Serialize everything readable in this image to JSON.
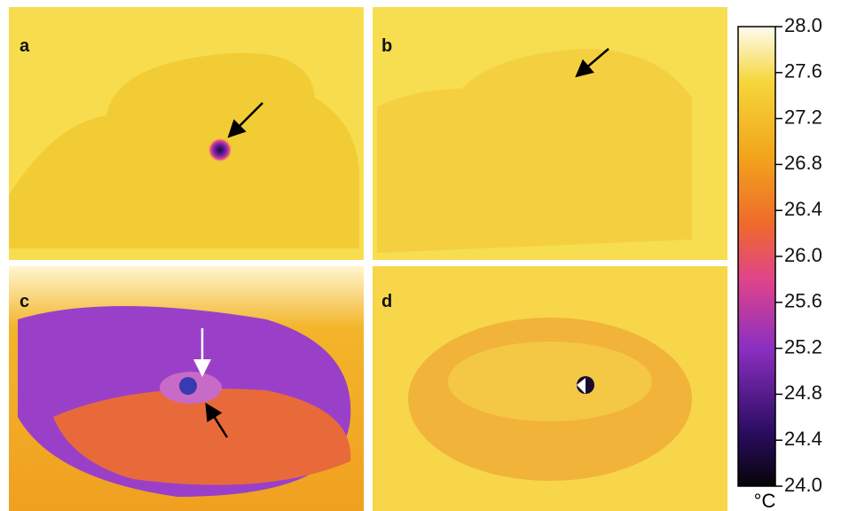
{
  "panels": [
    {
      "label": "a"
    },
    {
      "label": "b"
    },
    {
      "label": "c"
    },
    {
      "label": "d"
    }
  ],
  "colorbar": {
    "lim": [
      24,
      28
    ],
    "ticks": [
      {
        "value": 24,
        "label": "24.0"
      },
      {
        "value": 24.4,
        "label": "24.4"
      },
      {
        "value": 24.8,
        "label": "24.8"
      },
      {
        "value": 25.2,
        "label": "25.2"
      },
      {
        "value": 25.6,
        "label": "25.6"
      },
      {
        "value": 26,
        "label": "26.0"
      },
      {
        "value": 26.4,
        "label": "26.4"
      },
      {
        "value": 26.8,
        "label": "26.8"
      },
      {
        "value": 27.2,
        "label": "27.2"
      },
      {
        "value": 27.6,
        "label": "27.6"
      },
      {
        "value": 28,
        "label": "28.0"
      }
    ],
    "unit": "°C"
  }
}
